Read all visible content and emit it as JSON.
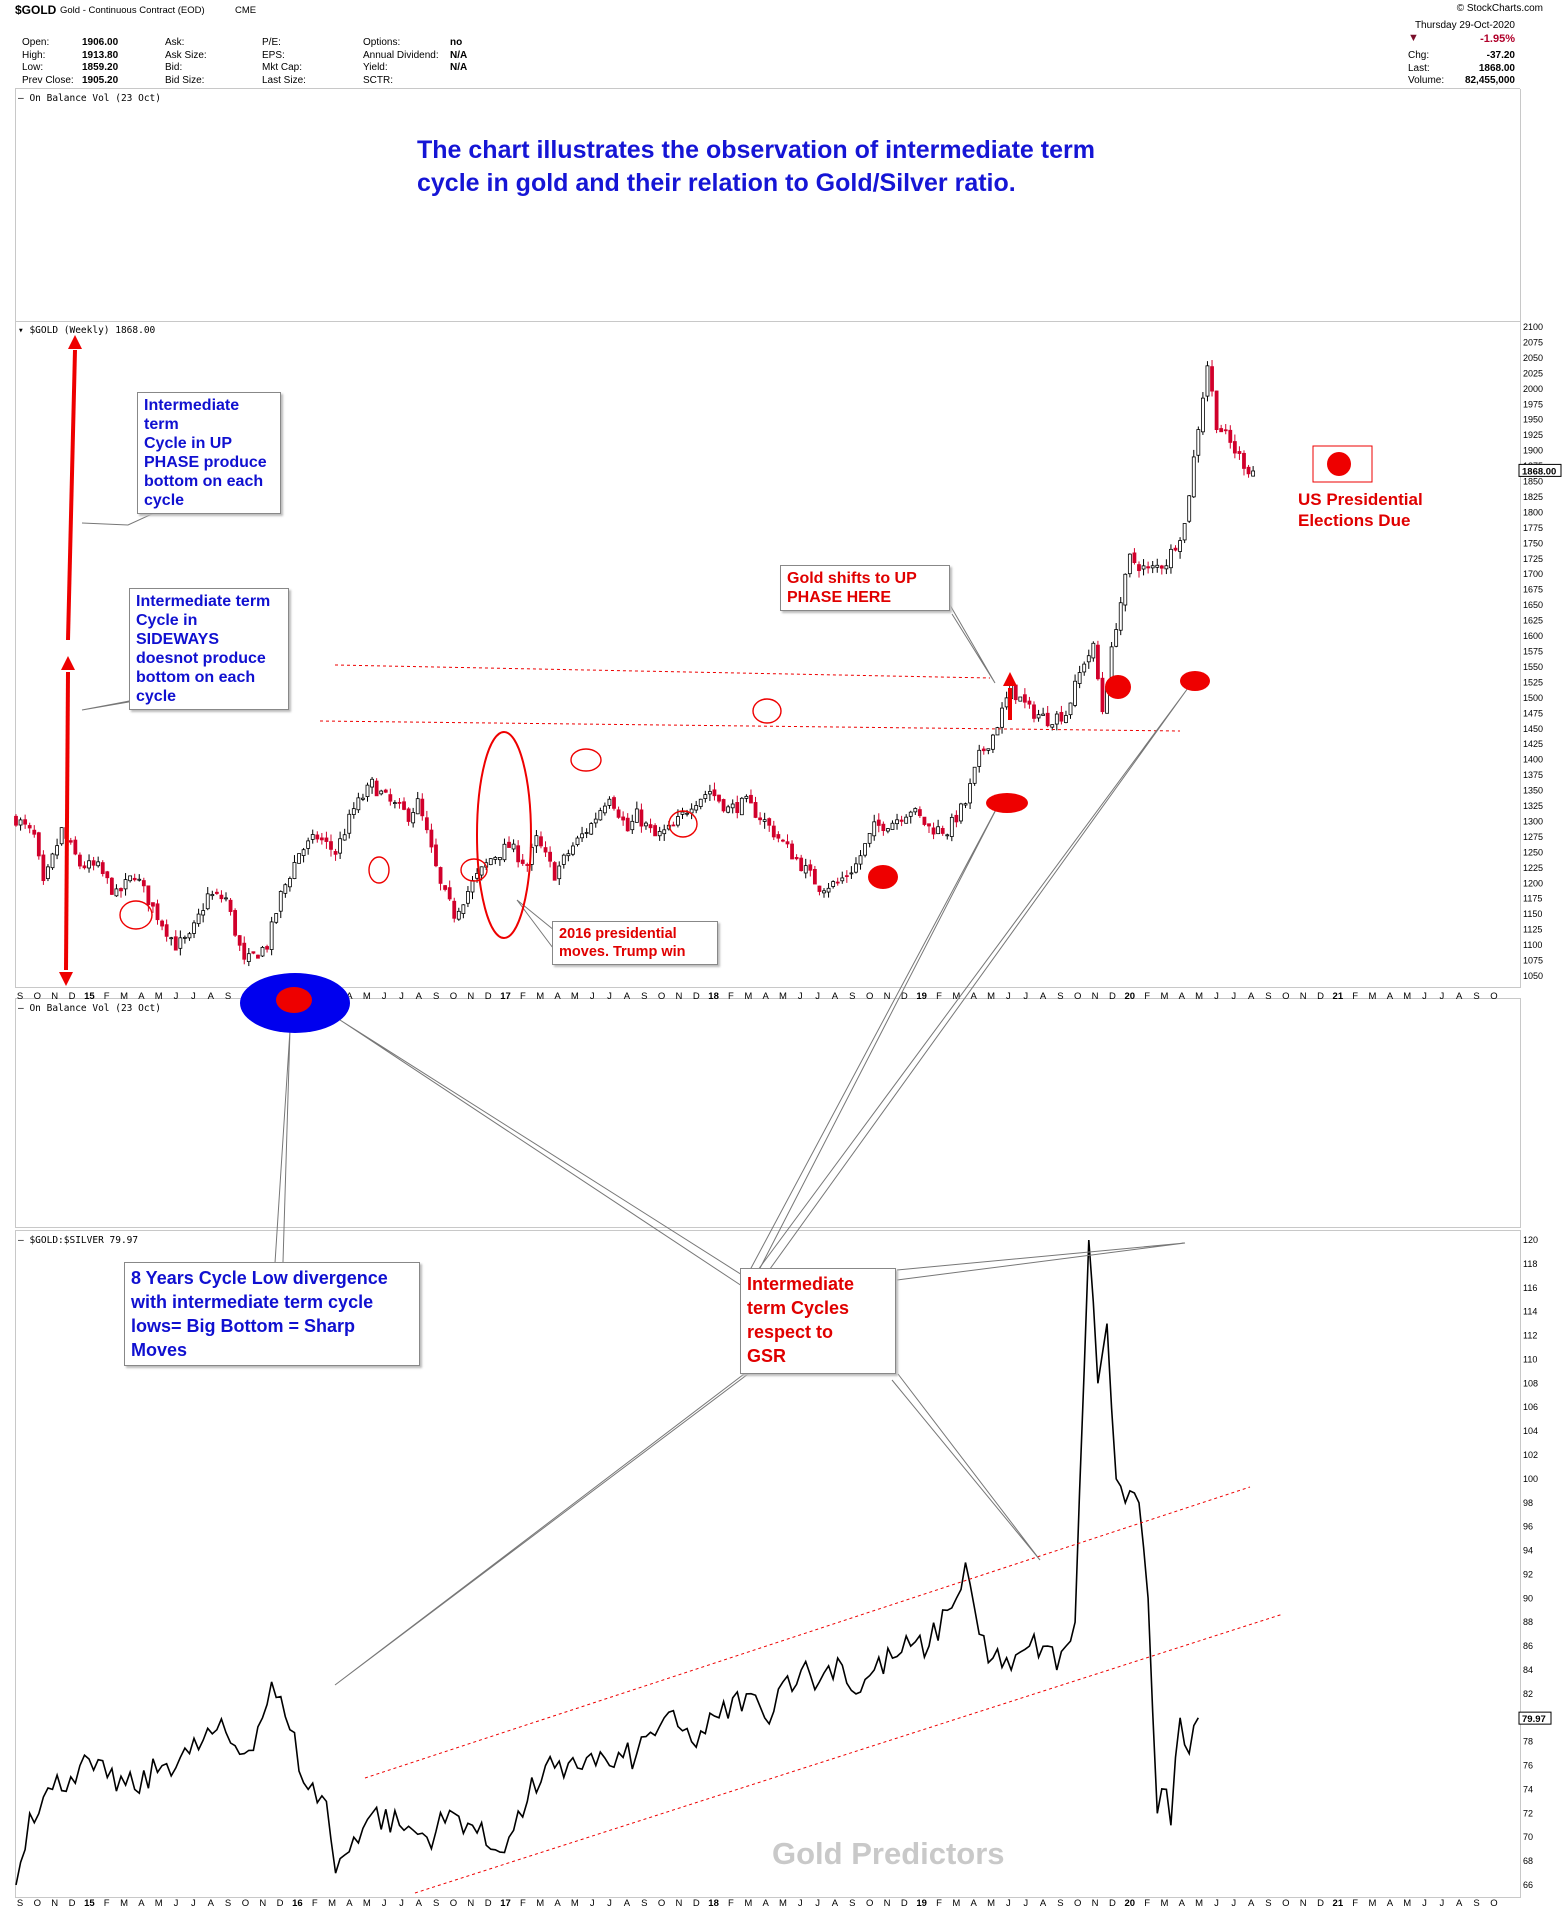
{
  "header": {
    "symbol": "$GOLD",
    "description": "Gold - Continuous Contract (EOD)",
    "exchange": "CME",
    "site": "© StockCharts.com",
    "date": "Thursday  29-Oct-2020",
    "change_pct": "-1.95%",
    "col1": [
      [
        "Open:",
        "1906.00"
      ],
      [
        "High:",
        "1913.80"
      ],
      [
        "Low:",
        "1859.20"
      ],
      [
        "Prev Close:",
        "1905.20"
      ]
    ],
    "col2": [
      [
        "Ask:",
        ""
      ],
      [
        "Ask Size:",
        ""
      ],
      [
        "Bid:",
        ""
      ],
      [
        "Bid Size:",
        ""
      ]
    ],
    "col3": [
      [
        "P/E:",
        ""
      ],
      [
        "EPS:",
        ""
      ],
      [
        "Mkt Cap:",
        ""
      ],
      [
        "Last Size:",
        ""
      ]
    ],
    "col4": [
      [
        "Options:",
        "no"
      ],
      [
        "Annual Dividend:",
        "N/A"
      ],
      [
        "Yield:",
        "N/A"
      ],
      [
        "SCTR:",
        ""
      ]
    ],
    "right": [
      [
        "Chg:",
        "-37.20"
      ],
      [
        "Last:",
        "1868.00"
      ],
      [
        "Volume:",
        "82,455,000"
      ]
    ]
  },
  "panel_labels": {
    "obv_top": "On Balance Vol (23 Oct)",
    "gold": "$GOLD (Weekly) 1868.00",
    "obv_mid": "On Balance Vol (23 Oct)",
    "gsr": "$GOLD:$SILVER 79.97"
  },
  "title": [
    "The chart illustrates the observation of intermediate term",
    "cycle in gold and their relation to Gold/Silver ratio."
  ],
  "annotations": {
    "up_phase": [
      "Intermediate term",
      "Cycle in UP",
      "PHASE produce",
      "bottom on each",
      "cycle"
    ],
    "sideways": [
      "Intermediate term",
      "Cycle in",
      "SIDEWAYS",
      "doesnot produce",
      "bottom on each",
      "cycle"
    ],
    "shift": [
      "Gold shifts to UP",
      "PHASE HERE"
    ],
    "election": [
      "US Presidential",
      "Elections Due"
    ],
    "trump": [
      "2016 presidential",
      "moves. Trump win"
    ],
    "eight_year": [
      "8 Years Cycle Low divergence",
      "with intermediate term cycle",
      "lows= Big Bottom = Sharp",
      "Moves"
    ],
    "gsr_cycles": [
      "Intermediate",
      "term Cycles",
      "respect to",
      "GSR"
    ]
  },
  "watermark": "Gold Predictors",
  "colors": {
    "up": "#000000",
    "down": "#d1002b",
    "annotation_red": "#e00000",
    "annotation_blue": "#1010d0",
    "ellipse_blue": "#0000ee"
  },
  "chart_data": [
    {
      "type": "candlestick",
      "name": "$GOLD (Weekly)",
      "last": "1868.00",
      "x_start": "2014-09",
      "x_end": "2020-10",
      "ylim": [
        1050,
        2100
      ],
      "yticks": [
        1050,
        1075,
        1100,
        1125,
        1150,
        1175,
        1200,
        1225,
        1250,
        1275,
        1300,
        1325,
        1350,
        1375,
        1400,
        1425,
        1450,
        1475,
        1500,
        1525,
        1550,
        1575,
        1600,
        1625,
        1650,
        1675,
        1700,
        1725,
        1750,
        1775,
        1800,
        1825,
        1850,
        1875,
        1900,
        1925,
        1950,
        1975,
        2000,
        2025,
        2050,
        2075,
        2100
      ],
      "xticks": [
        "S",
        "O",
        "N",
        "D",
        "15",
        "F",
        "M",
        "A",
        "M",
        "J",
        "J",
        "A",
        "S",
        "O",
        "N",
        "D",
        "16",
        "F",
        "M",
        "A",
        "M",
        "J",
        "J",
        "A",
        "S",
        "O",
        "N",
        "D",
        "17",
        "F",
        "M",
        "A",
        "M",
        "J",
        "J",
        "A",
        "S",
        "O",
        "N",
        "D",
        "18",
        "F",
        "M",
        "A",
        "M",
        "J",
        "J",
        "A",
        "S",
        "O",
        "N",
        "D",
        "19",
        "F",
        "M",
        "A",
        "M",
        "J",
        "J",
        "A",
        "S",
        "O",
        "N",
        "D",
        "20",
        "F",
        "M",
        "A",
        "M",
        "J",
        "J",
        "A",
        "S",
        "O",
        "N",
        "D",
        "21",
        "F",
        "M",
        "A",
        "M",
        "J",
        "J",
        "A",
        "S",
        "O"
      ],
      "anchors": [
        [
          0,
          1305
        ],
        [
          4,
          1275
        ],
        [
          6,
          1195
        ],
        [
          10,
          1285
        ],
        [
          14,
          1230
        ],
        [
          18,
          1225
        ],
        [
          22,
          1180
        ],
        [
          26,
          1215
        ],
        [
          30,
          1160
        ],
        [
          35,
          1100
        ],
        [
          38,
          1110
        ],
        [
          42,
          1180
        ],
        [
          46,
          1175
        ],
        [
          50,
          1070
        ],
        [
          55,
          1100
        ],
        [
          58,
          1180
        ],
        [
          62,
          1250
        ],
        [
          66,
          1275
        ],
        [
          70,
          1250
        ],
        [
          74,
          1320
        ],
        [
          78,
          1360
        ],
        [
          82,
          1330
        ],
        [
          86,
          1310
        ],
        [
          88,
          1330
        ],
        [
          90,
          1280
        ],
        [
          93,
          1195
        ],
        [
          96,
          1150
        ],
        [
          100,
          1200
        ],
        [
          104,
          1240
        ],
        [
          108,
          1260
        ],
        [
          112,
          1230
        ],
        [
          114,
          1270
        ],
        [
          118,
          1215
        ],
        [
          122,
          1260
        ],
        [
          126,
          1295
        ],
        [
          130,
          1345
        ],
        [
          134,
          1285
        ],
        [
          136,
          1310
        ],
        [
          140,
          1275
        ],
        [
          144,
          1290
        ],
        [
          148,
          1330
        ],
        [
          152,
          1350
        ],
        [
          156,
          1320
        ],
        [
          160,
          1330
        ],
        [
          164,
          1300
        ],
        [
          168,
          1265
        ],
        [
          172,
          1230
        ],
        [
          176,
          1195
        ],
        [
          180,
          1200
        ],
        [
          184,
          1230
        ],
        [
          188,
          1290
        ],
        [
          192,
          1300
        ],
        [
          196,
          1320
        ],
        [
          200,
          1290
        ],
        [
          204,
          1285
        ],
        [
          208,
          1330
        ],
        [
          211,
          1405
        ],
        [
          214,
          1440
        ],
        [
          218,
          1515
        ],
        [
          222,
          1480
        ],
        [
          226,
          1465
        ],
        [
          230,
          1475
        ],
        [
          234,
          1560
        ],
        [
          236,
          1580
        ],
        [
          238,
          1480
        ],
        [
          241,
          1620
        ],
        [
          244,
          1725
        ],
        [
          248,
          1705
        ],
        [
          252,
          1720
        ],
        [
          256,
          1780
        ],
        [
          259,
          1940
        ],
        [
          261,
          2040
        ],
        [
          263,
          1945
        ],
        [
          267,
          1900
        ],
        [
          270,
          1870
        ],
        [
          271,
          1868
        ]
      ],
      "last_week": 271
    },
    {
      "type": "line",
      "name": "$GOLD:$SILVER",
      "last": "79.97",
      "x_start": "2014-09",
      "x_end": "2020-10",
      "ylim": [
        66,
        120
      ],
      "yticks": [
        66,
        68,
        70,
        72,
        74,
        76,
        78,
        80,
        82,
        84,
        86,
        88,
        90,
        92,
        94,
        96,
        98,
        100,
        102,
        104,
        106,
        108,
        110,
        112,
        114,
        116,
        118,
        120
      ],
      "anchors": [
        [
          0,
          66
        ],
        [
          3,
          72
        ],
        [
          8,
          74
        ],
        [
          14,
          76
        ],
        [
          20,
          75
        ],
        [
          26,
          74
        ],
        [
          32,
          76
        ],
        [
          38,
          77
        ],
        [
          44,
          79
        ],
        [
          50,
          77
        ],
        [
          54,
          80
        ],
        [
          56,
          83
        ],
        [
          60,
          79
        ],
        [
          64,
          74
        ],
        [
          68,
          73
        ],
        [
          70,
          67
        ],
        [
          74,
          70
        ],
        [
          78,
          72
        ],
        [
          84,
          71
        ],
        [
          90,
          70
        ],
        [
          96,
          72
        ],
        [
          100,
          71
        ],
        [
          104,
          69
        ],
        [
          108,
          70
        ],
        [
          112,
          73
        ],
        [
          116,
          76
        ],
        [
          120,
          75
        ],
        [
          126,
          77
        ],
        [
          130,
          76
        ],
        [
          136,
          77
        ],
        [
          142,
          80
        ],
        [
          148,
          78
        ],
        [
          154,
          80
        ],
        [
          160,
          82
        ],
        [
          164,
          80
        ],
        [
          168,
          83
        ],
        [
          172,
          84
        ],
        [
          176,
          83
        ],
        [
          180,
          85
        ],
        [
          184,
          82
        ],
        [
          188,
          84
        ],
        [
          192,
          85
        ],
        [
          196,
          86
        ],
        [
          200,
          86
        ],
        [
          204,
          89
        ],
        [
          206,
          90
        ],
        [
          208,
          93
        ],
        [
          211,
          87
        ],
        [
          214,
          85
        ],
        [
          218,
          84
        ],
        [
          222,
          86
        ],
        [
          226,
          86
        ],
        [
          228,
          84
        ],
        [
          230,
          86
        ],
        [
          232,
          88
        ],
        [
          233,
          99
        ],
        [
          235,
          120
        ],
        [
          237,
          108
        ],
        [
          239,
          113
        ],
        [
          241,
          100
        ],
        [
          243,
          98
        ],
        [
          244,
          99
        ],
        [
          246,
          98
        ],
        [
          248,
          90
        ],
        [
          250,
          72
        ],
        [
          252,
          74
        ],
        [
          253,
          71
        ],
        [
          255,
          80
        ],
        [
          257,
          77
        ],
        [
          259,
          80
        ]
      ]
    }
  ]
}
